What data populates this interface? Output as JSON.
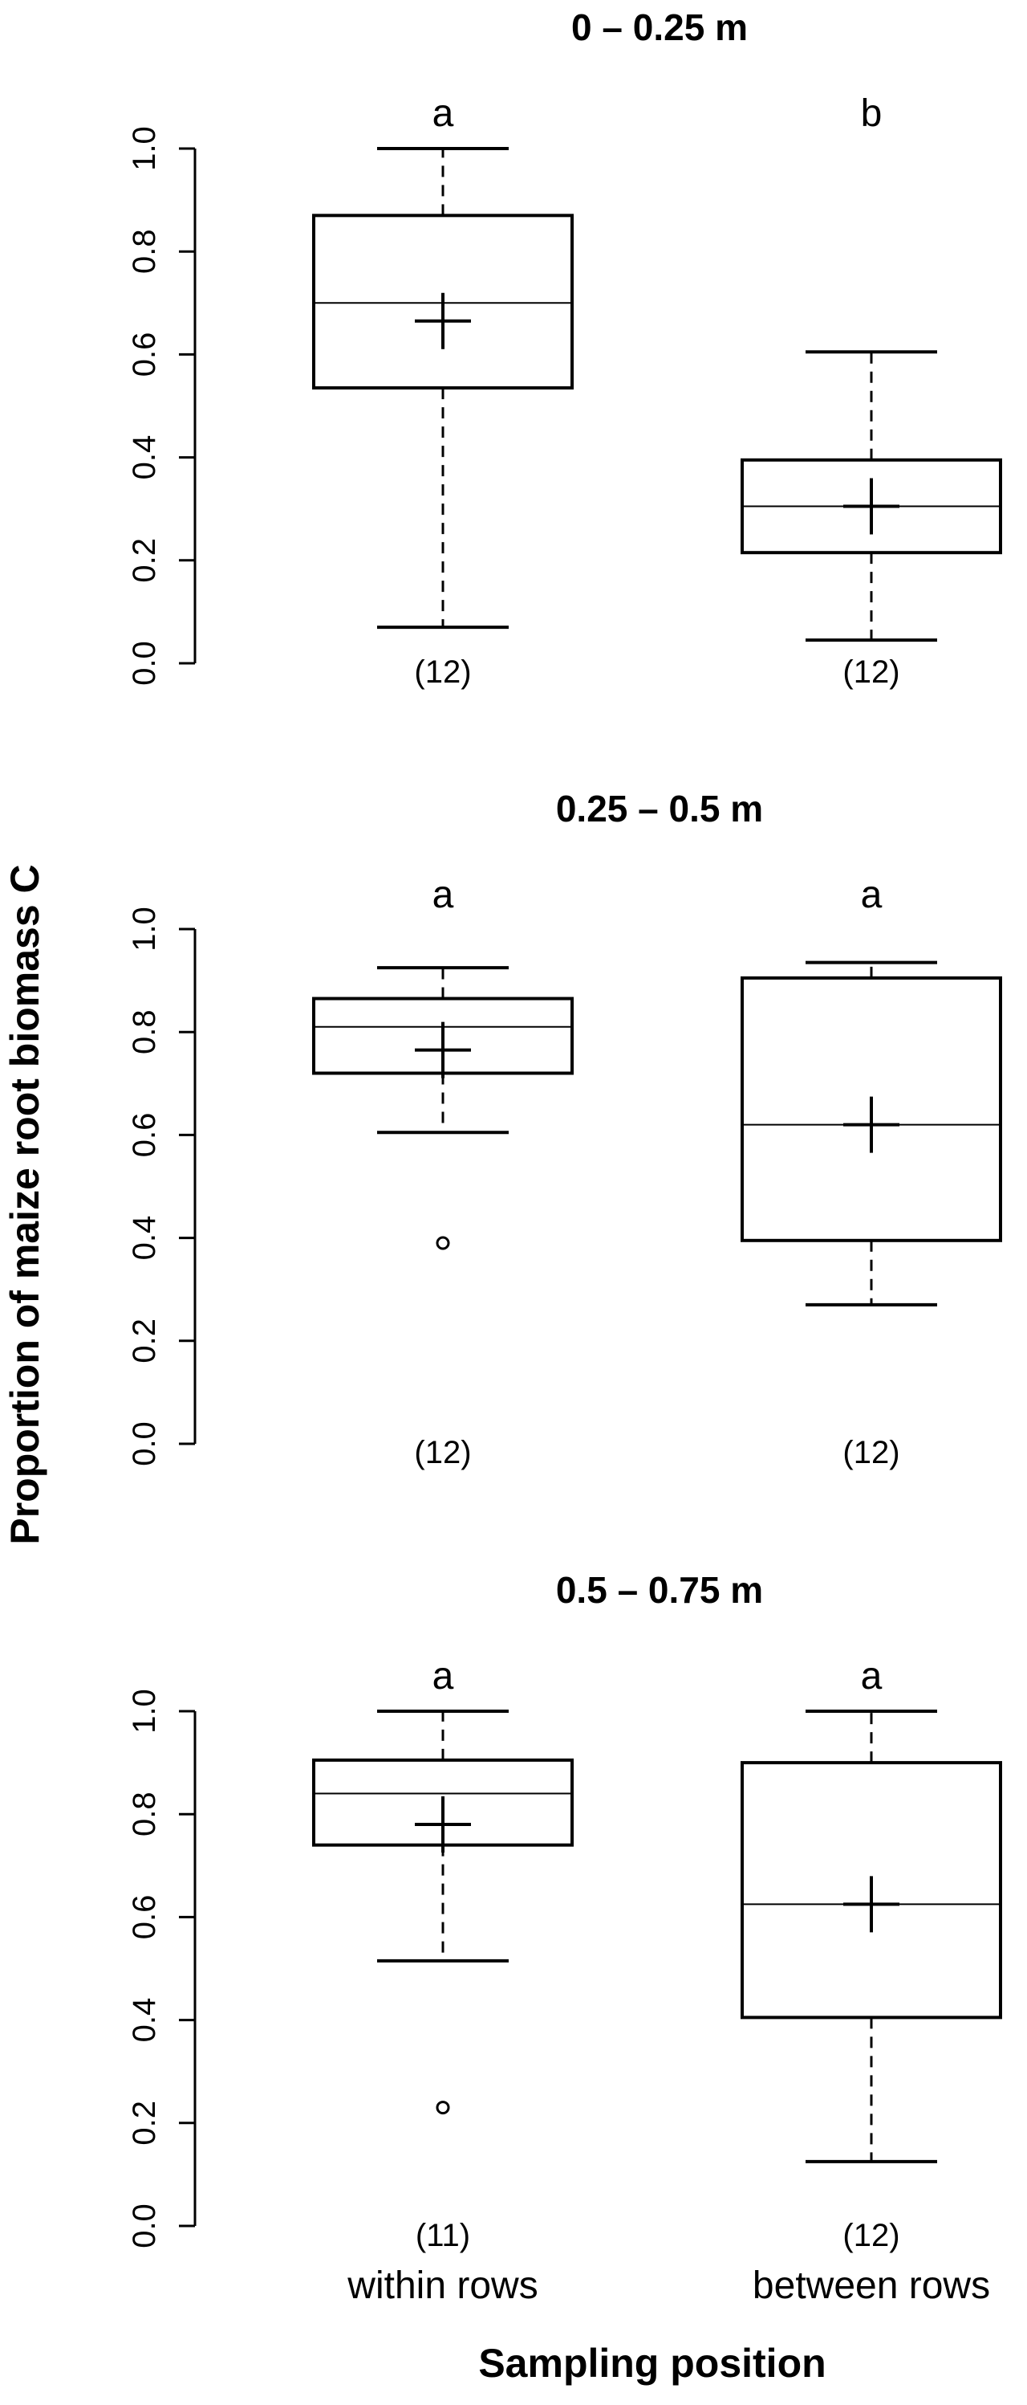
{
  "chart_data": {
    "type": "box",
    "ylabel": "Proportion of maize root biomass C",
    "xlabel": "Sampling position",
    "categories": [
      "within rows",
      "between rows"
    ],
    "yticks": [
      "0.0",
      "0.2",
      "0.4",
      "0.6",
      "0.8",
      "1.0"
    ],
    "ylim": [
      0,
      1
    ],
    "panels": [
      {
        "title": "0 – 0.25 m",
        "boxes": [
          {
            "category": "within rows",
            "whisker_low": 0.07,
            "q1": 0.535,
            "median": 0.7,
            "q3": 0.87,
            "whisker_high": 1.0,
            "mean": 0.665,
            "outliers": [],
            "n_label": "(12)",
            "letter": "a"
          },
          {
            "category": "between rows",
            "whisker_low": 0.045,
            "q1": 0.215,
            "median": 0.305,
            "q3": 0.395,
            "whisker_high": 0.605,
            "mean": 0.305,
            "outliers": [],
            "n_label": "(12)",
            "letter": "b"
          }
        ]
      },
      {
        "title": "0.25 – 0.5 m",
        "boxes": [
          {
            "category": "within rows",
            "whisker_low": 0.605,
            "q1": 0.72,
            "median": 0.81,
            "q3": 0.865,
            "whisker_high": 0.925,
            "mean": 0.765,
            "outliers": [
              0.39
            ],
            "n_label": "(12)",
            "letter": "a"
          },
          {
            "category": "between rows",
            "whisker_low": 0.27,
            "q1": 0.395,
            "median": 0.62,
            "q3": 0.905,
            "whisker_high": 0.935,
            "mean": 0.62,
            "outliers": [],
            "n_label": "(12)",
            "letter": "a"
          }
        ]
      },
      {
        "title": "0.5 – 0.75 m",
        "boxes": [
          {
            "category": "within rows",
            "whisker_low": 0.515,
            "q1": 0.74,
            "median": 0.84,
            "q3": 0.905,
            "whisker_high": 1.0,
            "mean": 0.78,
            "outliers": [
              0.23
            ],
            "n_label": "(11)",
            "letter": "a"
          },
          {
            "category": "between rows",
            "whisker_low": 0.125,
            "q1": 0.405,
            "median": 0.625,
            "q3": 0.9,
            "whisker_high": 1.0,
            "mean": 0.625,
            "outliers": [],
            "n_label": "(12)",
            "letter": "a"
          }
        ]
      }
    ]
  }
}
